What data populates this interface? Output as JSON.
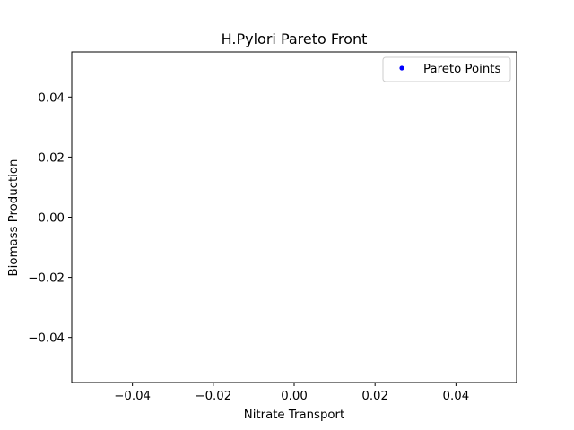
{
  "chart_data": {
    "type": "scatter",
    "title": "H.Pylori Pareto Front",
    "xlabel": "Nitrate Transport",
    "ylabel": "Biomass Production",
    "xlim": [
      -0.055,
      0.055
    ],
    "ylim": [
      -0.055,
      0.055
    ],
    "x_ticks": [
      -0.04,
      -0.02,
      0.0,
      0.02,
      0.04
    ],
    "x_tick_labels": [
      "−0.04",
      "−0.02",
      "0.00",
      "0.02",
      "0.04"
    ],
    "y_ticks": [
      -0.04,
      -0.02,
      0.0,
      0.02,
      0.04
    ],
    "y_tick_labels": [
      "−0.04",
      "−0.02",
      "0.00",
      "0.02",
      "0.04"
    ],
    "grid": false,
    "legend_position": "top-right",
    "series": [
      {
        "name": "Pareto Points",
        "color": "#0000ff",
        "marker": "point",
        "x": [],
        "y": []
      }
    ]
  }
}
